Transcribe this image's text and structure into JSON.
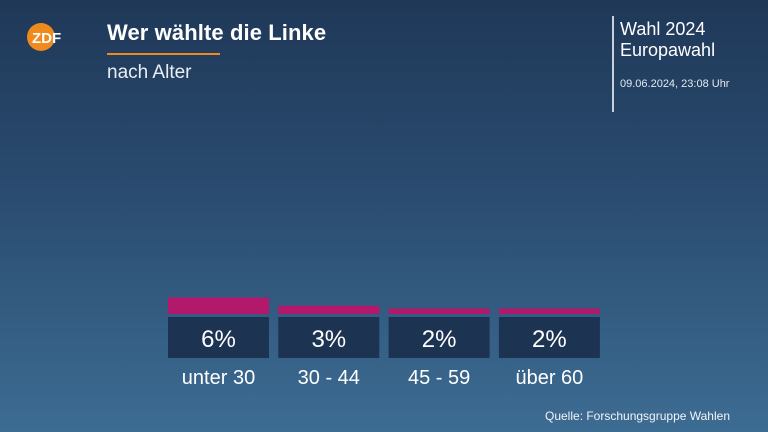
{
  "header": {
    "logo_text": "ZDF",
    "title": "Wer wählte die Linke",
    "subtitle": "nach Alter"
  },
  "side": {
    "line1": "Wahl 2024",
    "line2": "Europawahl",
    "date": "09.06.2024, 23:08 Uhr"
  },
  "footer": {
    "source": "Quelle: Forschungsgruppe Wahlen"
  },
  "colors": {
    "bar": "#b3196a",
    "label_box": "#1c3352",
    "accent": "#f08a1c"
  },
  "chart_data": {
    "type": "bar",
    "categories": [
      "unter 30",
      "30 - 44",
      "45 - 59",
      "über 60"
    ],
    "values": [
      6,
      3,
      2,
      2
    ],
    "value_labels": [
      "6%",
      "3%",
      "2%",
      "2%"
    ],
    "unit": "%",
    "title": "Wer wählte die Linke",
    "subtitle": "nach Alter",
    "ylim": [
      0,
      100
    ],
    "grid": false,
    "legend": "none"
  }
}
